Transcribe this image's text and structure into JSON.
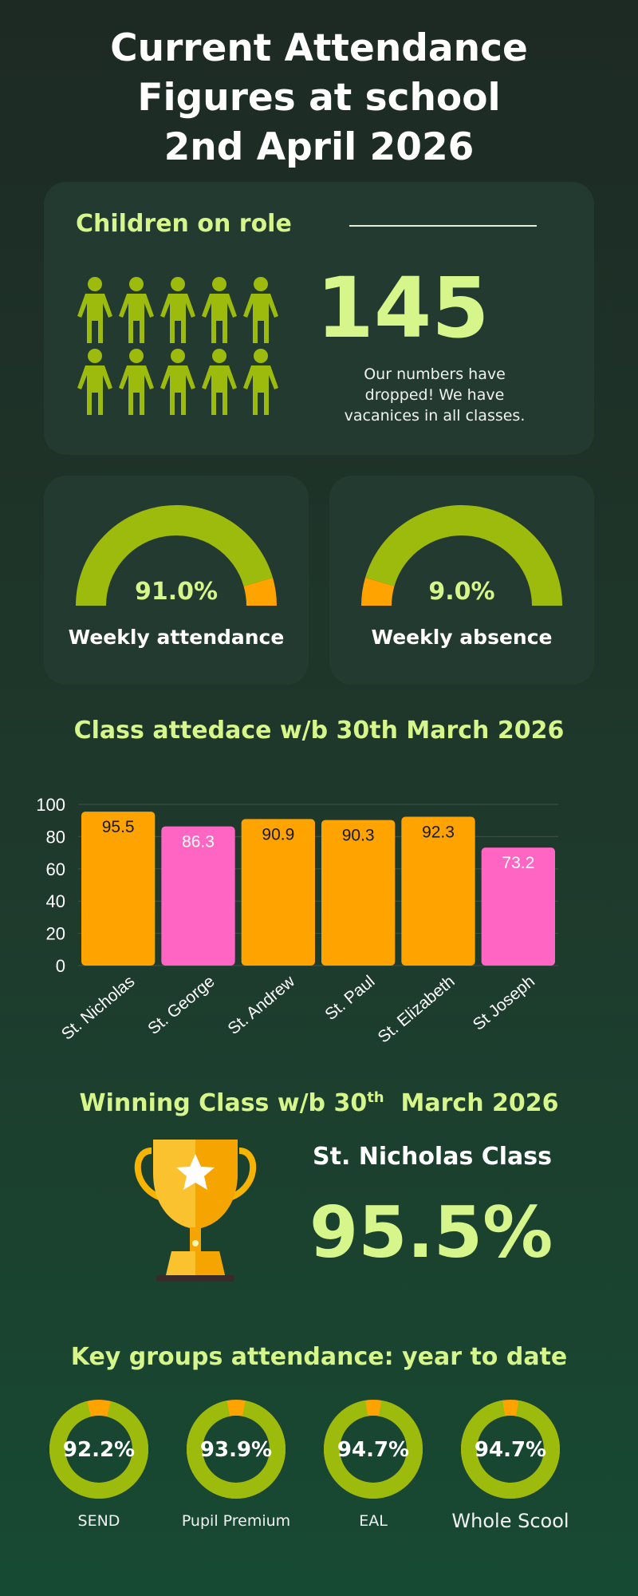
{
  "title": {
    "line1": "Current Attendance",
    "line2": "Figures at school",
    "line3": "2nd April 2026"
  },
  "role": {
    "heading": "Children on role",
    "number": "145",
    "note": "Our numbers have dropped! We have vacanices in all classes.",
    "icon": "person-icon",
    "icon_count": 10
  },
  "attendance": {
    "value_label": "91.0%",
    "value": 91.0,
    "label": "Weekly attendance"
  },
  "absence": {
    "value_label": "9.0%",
    "value": 9.0,
    "label": "Weekly absence"
  },
  "colors": {
    "green": "#9dbb0d",
    "orange": "#ffa300",
    "pink": "#ff66c4",
    "accent": "#d6f58a"
  },
  "class_chart": {
    "heading": "Class attedace w/b 30th March 2026"
  },
  "chart_data": {
    "type": "bar",
    "categories": [
      "St. Nicholas",
      "St. George",
      "St. Andrew",
      "St. Paul",
      "St. Elizabeth",
      "St Joseph"
    ],
    "values": [
      95.5,
      86.3,
      90.9,
      90.3,
      92.3,
      73.2
    ],
    "bar_colors": [
      "#ffa300",
      "#ff66c4",
      "#ffa300",
      "#ffa300",
      "#ffa300",
      "#ff66c4"
    ],
    "ylim": [
      0,
      100
    ],
    "yticks": [
      0,
      20,
      40,
      60,
      80,
      100
    ],
    "grid": true,
    "title": "",
    "xlabel": "",
    "ylabel": ""
  },
  "winner": {
    "heading_pre": "Winning Class w/b 30",
    "heading_sup": "th",
    "heading_post": "  March 2026",
    "name": "St. Nicholas Class",
    "value": "95.5%",
    "icon": "trophy-icon"
  },
  "groups": {
    "heading": "Key groups attendance: year to date",
    "items": [
      {
        "label": "SEND",
        "value_label": "92.2%",
        "value": 92.2
      },
      {
        "label": "Pupil Premium",
        "value_label": "93.9%",
        "value": 93.9
      },
      {
        "label": "EAL",
        "value_label": "94.7%",
        "value": 94.7
      },
      {
        "label": "Whole Scool",
        "value_label": "94.7%",
        "value": 94.7
      }
    ]
  }
}
